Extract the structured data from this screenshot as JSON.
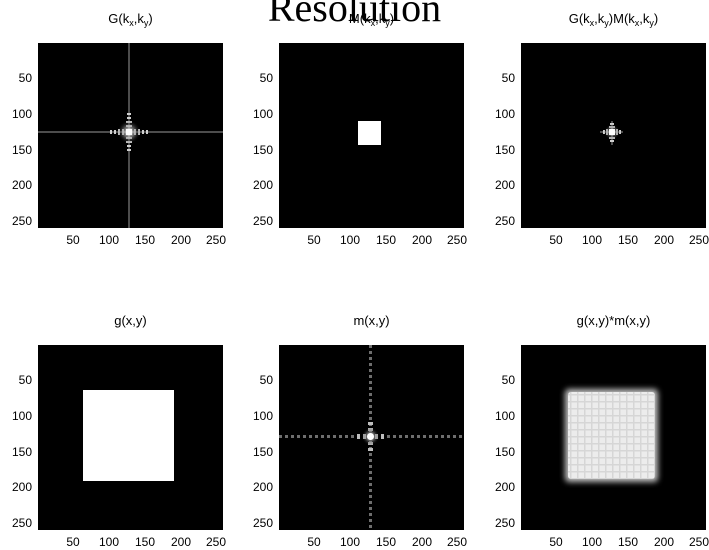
{
  "main_title": "Resolution",
  "panels": [
    {
      "title_pre": "G(k",
      "title_sub1": "x",
      "title_mid": ",k",
      "title_sub2": "y",
      "title_post": ")"
    },
    {
      "title_pre": "M(k",
      "title_sub1": "x",
      "title_mid": ",k",
      "title_sub2": "y",
      "title_post": ")"
    },
    {
      "title_pre": "G(k",
      "title_sub1": "x",
      "title_mid": ",k",
      "title_sub2": "y",
      "title_post": ")M(k",
      "title_sub3": "x",
      "title_mid2": ",k",
      "title_sub4": "y",
      "title_post2": ")"
    },
    {
      "title": "g(x,y)"
    },
    {
      "title": "m(x,y)"
    },
    {
      "title": "g(x,y)*m(x,y)"
    }
  ],
  "axes": {
    "x_ticks": [
      "50",
      "100",
      "150",
      "200",
      "250"
    ],
    "y_ticks": [
      "50",
      "100",
      "150",
      "200",
      "250"
    ],
    "range": [
      1,
      256
    ]
  },
  "colors": {
    "background": "#000000",
    "signal": "#ffffff"
  }
}
